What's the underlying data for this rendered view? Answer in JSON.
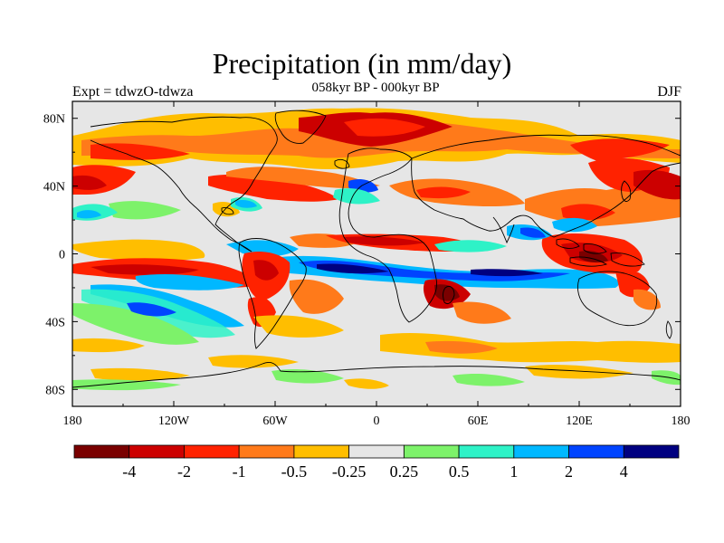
{
  "header": {
    "title": "Precipitation (in mm/day)",
    "left_string": "Expt = tdwzO-tdwza",
    "center_string": "058kyr BP - 000kyr BP",
    "right_string": "DJF"
  },
  "map": {
    "projection": "cylindrical-equidistant",
    "lon_range": [
      -180,
      180
    ],
    "lat_range": [
      -90,
      90
    ],
    "lat_ticks": [
      {
        "value": 80,
        "label": "80N"
      },
      {
        "value": 40,
        "label": "40N"
      },
      {
        "value": 0,
        "label": "0"
      },
      {
        "value": -40,
        "label": "40S"
      },
      {
        "value": -80,
        "label": "80S"
      }
    ],
    "lon_ticks": [
      {
        "value": -180,
        "label": "180"
      },
      {
        "value": -120,
        "label": "120W"
      },
      {
        "value": -60,
        "label": "60W"
      },
      {
        "value": 0,
        "label": "0"
      },
      {
        "value": 60,
        "label": "60E"
      },
      {
        "value": 120,
        "label": "120E"
      },
      {
        "value": 180,
        "label": "180"
      }
    ],
    "background_color": "#e6e6e6",
    "coastline_color": "#000000"
  },
  "colorbar": {
    "colors": [
      "#7a0000",
      "#cc0000",
      "#ff2200",
      "#ff7a1a",
      "#ffbe00",
      "#e6e6e6",
      "#7df26a",
      "#2ef2c7",
      "#00b8ff",
      "#0044ff",
      "#000080"
    ],
    "labels": [
      "-4",
      "-2",
      "-1",
      "-0.5",
      "-0.25",
      "0.25",
      "0.5",
      "1",
      "2",
      "4"
    ]
  }
}
